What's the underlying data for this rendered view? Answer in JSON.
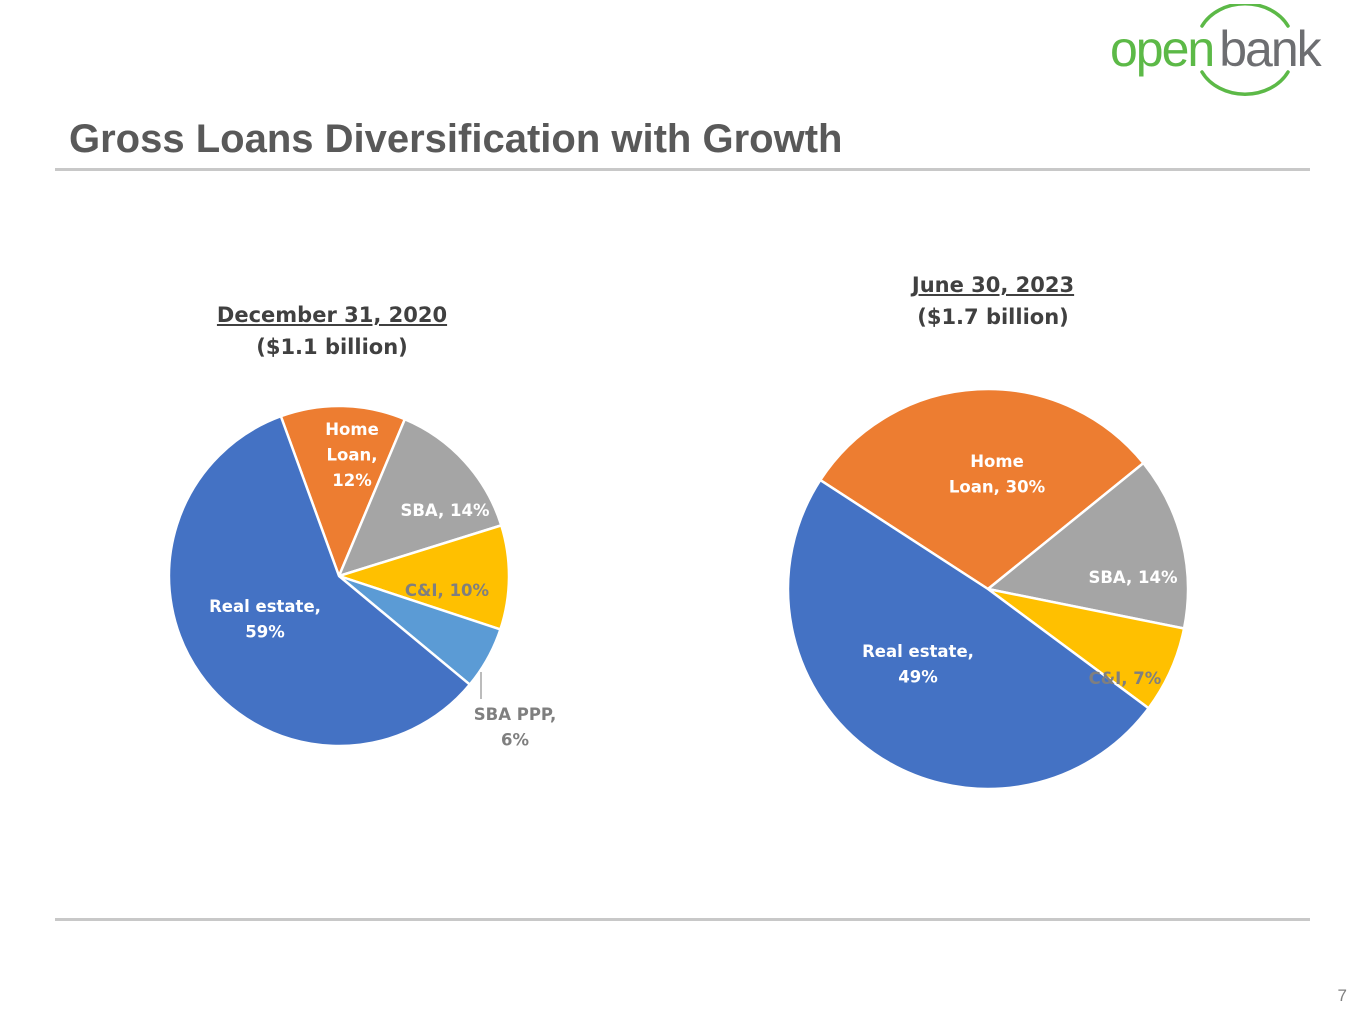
{
  "logo": {
    "part1": "open",
    "part2": "bank"
  },
  "title": "Gross Loans Diversification with Growth",
  "page_number": "7",
  "colors": {
    "real_estate": "#4472c4",
    "home_loan": "#ed7d31",
    "sba": "#a5a5a5",
    "cni": "#ffc000",
    "sba_ppp": "#5b9bd5",
    "logo_green": "#5cb947",
    "logo_gray": "#6d6e71",
    "title": "#595959"
  },
  "chart_data": [
    {
      "type": "pie",
      "title": "December 31, 2020",
      "subtitle": "($1.1 billion)",
      "unit": "%",
      "slices": [
        {
          "category": "Home Loan",
          "value": 12,
          "label_lines": [
            "Home",
            "Loan,",
            "12%"
          ],
          "color": "#ed7d31",
          "label_color": "#ffffff"
        },
        {
          "category": "SBA",
          "value": 14,
          "label_lines": [
            "SBA, 14%"
          ],
          "color": "#a5a5a5",
          "label_color": "#ffffff"
        },
        {
          "category": "C&I",
          "value": 10,
          "label_lines": [
            "C&I, 10%"
          ],
          "color": "#ffc000",
          "label_color": "#7f7f7f"
        },
        {
          "category": "SBA PPP",
          "value": 6,
          "label_lines": [
            "SBA PPP,",
            "6%"
          ],
          "color": "#5b9bd5",
          "label_color": "#7f7f7f"
        },
        {
          "category": "Real estate",
          "value": 59,
          "label_lines": [
            "Real estate,",
            "59%"
          ],
          "color": "#4472c4",
          "label_color": "#ffffff"
        }
      ]
    },
    {
      "type": "pie",
      "title": "June 30, 2023",
      "subtitle": "($1.7 billion)",
      "unit": "%",
      "slices": [
        {
          "category": "Home Loan",
          "value": 30,
          "label_lines": [
            "Home",
            "Loan, 30%"
          ],
          "color": "#ed7d31",
          "label_color": "#ffffff"
        },
        {
          "category": "SBA",
          "value": 14,
          "label_lines": [
            "SBA, 14%"
          ],
          "color": "#a5a5a5",
          "label_color": "#ffffff"
        },
        {
          "category": "C&I",
          "value": 7,
          "label_lines": [
            "C&I, 7%"
          ],
          "color": "#ffc000",
          "label_color": "#7f7f7f"
        },
        {
          "category": "Real estate",
          "value": 49,
          "label_lines": [
            "Real estate,",
            "49%"
          ],
          "color": "#4472c4",
          "label_color": "#ffffff"
        }
      ]
    }
  ]
}
